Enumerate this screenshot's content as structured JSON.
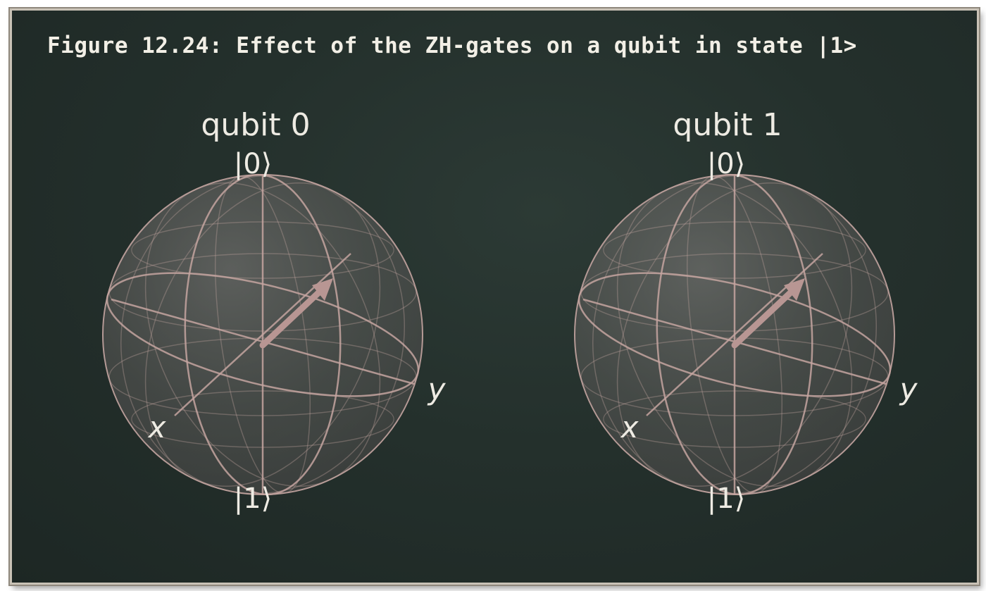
{
  "figure": {
    "title": "Figure 12.24: Effect of the ZH-gates on a qubit in state |1>"
  },
  "spheres": [
    {
      "name": "qubit 0",
      "label_top": "|0⟩",
      "label_bottom": "|1⟩",
      "label_x": "x",
      "label_y": "y"
    },
    {
      "name": "qubit 1",
      "label_top": "|0⟩",
      "label_bottom": "|1⟩",
      "label_x": "x",
      "label_y": "y"
    }
  ],
  "colors": {
    "wire": "#c4a5a0",
    "vector": "#b89693",
    "sphere_fill": "#7d7875",
    "text": "#eeebe3",
    "board": "#24302c"
  }
}
